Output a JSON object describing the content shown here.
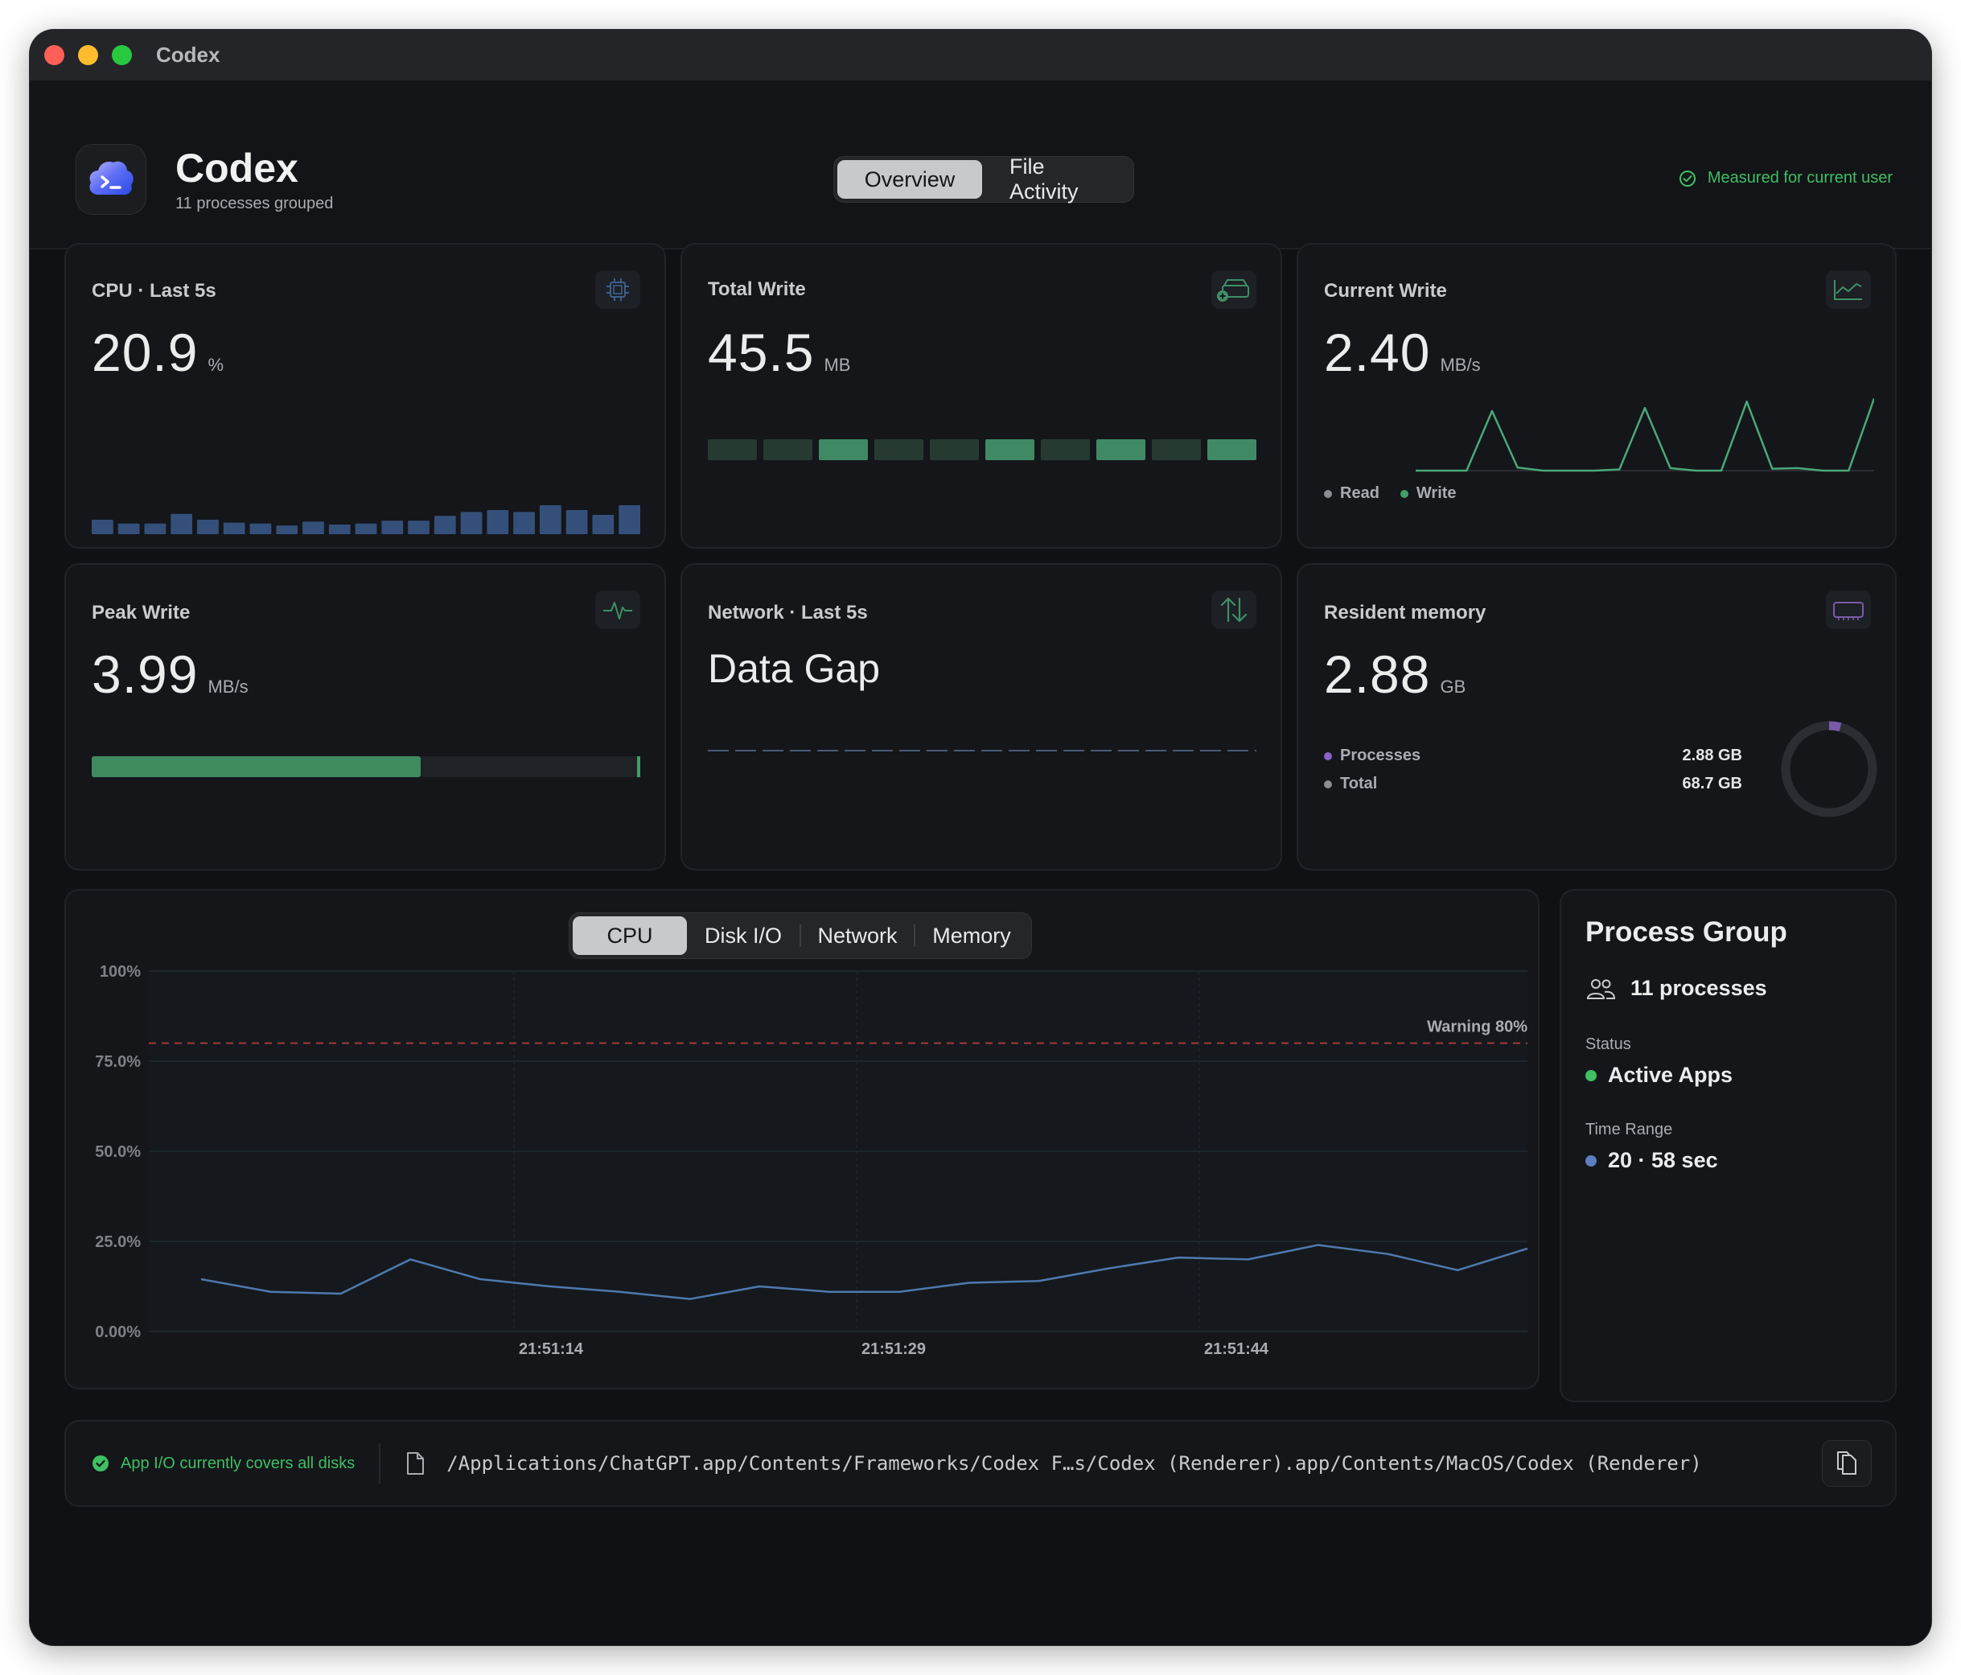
{
  "window": {
    "title": "Codex"
  },
  "header": {
    "app_name": "Codex",
    "subtitle": "11 processes grouped",
    "tabs": [
      {
        "label": "Overview",
        "active": true
      },
      {
        "label": "File Activity",
        "active": false
      }
    ],
    "measured_label": "Measured for current user"
  },
  "cards": {
    "cpu": {
      "label": "CPU · Last 5s",
      "value": "20.9",
      "unit": "%",
      "icon": "cpu-chip-icon",
      "bars": [
        0.3,
        0.22,
        0.22,
        0.42,
        0.3,
        0.24,
        0.22,
        0.18,
        0.26,
        0.2,
        0.22,
        0.28,
        0.28,
        0.38,
        0.46,
        0.5,
        0.46,
        0.6,
        0.5,
        0.4,
        0.6
      ]
    },
    "total_write": {
      "label": "Total Write",
      "value": "45.5",
      "unit": "MB",
      "icon": "disk-drive-icon",
      "blocks": [
        0,
        0,
        1,
        0,
        0,
        1,
        0,
        1,
        0,
        1
      ]
    },
    "current_write": {
      "label": "Current Write",
      "value": "2.40",
      "unit": "MB/s",
      "icon": "line-chart-icon",
      "legend": [
        {
          "name": "Read",
          "color": "#8a8d92"
        },
        {
          "name": "Write",
          "color": "#3fa06a"
        }
      ],
      "spark": [
        0,
        0,
        0,
        0.95,
        0.05,
        0,
        0,
        0,
        0.02,
        1,
        0.04,
        0,
        0,
        1.1,
        0.03,
        0.04,
        0,
        0,
        1.15
      ]
    },
    "peak_write": {
      "label": "Peak Write",
      "value": "3.99",
      "unit": "MB/s",
      "icon": "pulse-icon",
      "fill": 0.6
    },
    "network": {
      "label": "Network · Last 5s",
      "value": "Data Gap",
      "icon": "up-down-arrows-icon"
    },
    "memory": {
      "label": "Resident memory",
      "value": "2.88",
      "unit": "GB",
      "icon": "memory-module-icon",
      "rows": [
        {
          "name": "Processes",
          "value": "2.88 GB",
          "color": "#8a63c8"
        },
        {
          "name": "Total",
          "value": "68.7 GB",
          "color": "#8a8d92"
        }
      ],
      "fraction": 0.042
    }
  },
  "chart_tabs": [
    {
      "label": "CPU",
      "active": true
    },
    {
      "label": "Disk I/O",
      "active": false
    },
    {
      "label": "Network",
      "active": false
    },
    {
      "label": "Memory",
      "active": false
    }
  ],
  "chart_data": {
    "type": "line",
    "ylabel": "",
    "xlabel": "",
    "ylim": [
      0,
      100
    ],
    "y_ticks": [
      "100%",
      "75.0%",
      "50.0%",
      "25.0%",
      "0.00%"
    ],
    "x_ticks": [
      "21:51:14",
      "21:51:29",
      "21:51:44"
    ],
    "warning": {
      "label": "Warning 80%",
      "value": 80
    },
    "series": [
      {
        "values": [
          14.5,
          11,
          10.5,
          20,
          14.5,
          12.5,
          11,
          9,
          12.5,
          11,
          11,
          13.5,
          14,
          17.5,
          20.5,
          20,
          24,
          21.5,
          17,
          23
        ]
      }
    ]
  },
  "process_group": {
    "title": "Process Group",
    "count_label": "11 processes",
    "status_label": "Status",
    "status_value": "Active Apps",
    "status_color": "#3fbf63",
    "range_label": "Time Range",
    "range_value": "20 · 58 sec",
    "range_color": "#5b7fc0"
  },
  "footer": {
    "status_text": "App I/O currently covers all disks",
    "path": "/Applications/ChatGPT.app/Contents/Frameworks/Codex F…s/Codex (Renderer).app/Contents/MacOS/Codex (Renderer)"
  }
}
